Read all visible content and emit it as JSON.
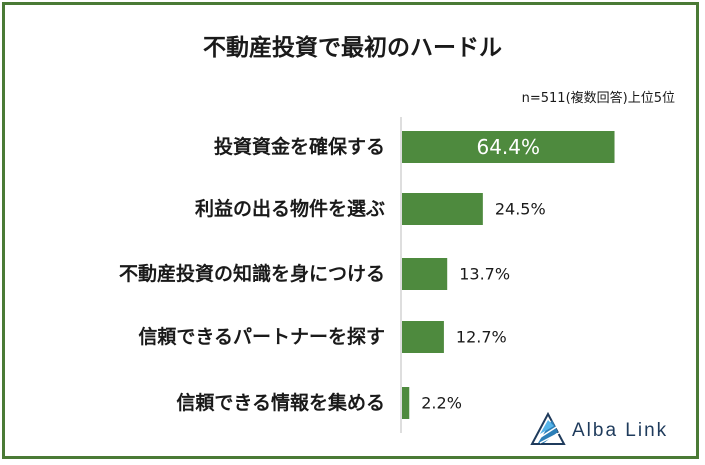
{
  "chart_data": {
    "type": "bar",
    "orientation": "horizontal",
    "title": "不動産投資で最初のハードル",
    "note": "n=511(複数回答)上位5位",
    "categories": [
      "投資資金を確保する",
      "利益の出る物件を選ぶ",
      "不動産投資の知識を身につける",
      "信頼できるパートナーを探す",
      "信頼できる情報を集める"
    ],
    "values": [
      64.4,
      24.5,
      13.7,
      12.7,
      2.2
    ],
    "labels": [
      "64.4%",
      "24.5%",
      "13.7%",
      "12.7%",
      "2.2%"
    ],
    "bar_color": "#4e8a3e",
    "grid": false
  },
  "brand": {
    "name": "Alba Link",
    "icon": "triangle-logo-icon",
    "color": "#1f3b5c"
  }
}
